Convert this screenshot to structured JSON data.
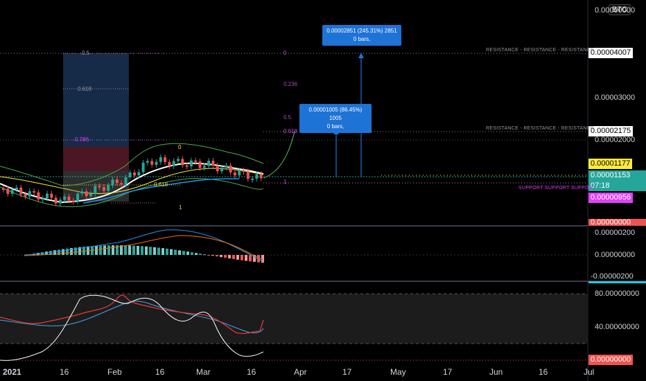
{
  "symbol": "BTC",
  "price_axis": {
    "main": [
      "0.00000000",
      "0.00003000",
      "0.00002000"
    ],
    "macd": [
      "0.00000200",
      "0.00000000",
      "-0.00000200"
    ],
    "rsi": [
      "80.00000000",
      "40.00000000"
    ]
  },
  "price_tags": {
    "resistance_top": "0.00004007",
    "resistance_mid": "0.00002175",
    "yellow": "0.00001177",
    "current": "0.00001153",
    "countdown": "07:18",
    "support": "0.00000956",
    "bottom_red": "0.00000000",
    "rsi_red": "0.00000000"
  },
  "resistance_labels": {
    "top": "RESISTANCE - RESISTANCE - RESISTANCE",
    "mid": "RESISTANCE - RESISTANCE - RESISTANCE",
    "support": "SUPPORT SUPPORT SUPPORT"
  },
  "fib_left": {
    "l05": "0.5",
    "l0618": "0.618",
    "l0786": "0.786",
    "l0618b": "0.618",
    "l1": "1"
  },
  "fib_right": {
    "l0": "0",
    "l0236": "0.236",
    "l05": "0.5",
    "l0618": "0.618",
    "l1": "1",
    "mark0": "0"
  },
  "tooltips": {
    "big_line1": "0.00002851 (245.31%) 2851",
    "big_line2": "0 bars,",
    "small_line1": "0.00001005 (86.45%) 1005",
    "small_line2": "0 bars,"
  },
  "dates": [
    "2021",
    "16",
    "Feb",
    "16",
    "Mar",
    "16",
    "Apr",
    "17",
    "May",
    "17",
    "Jun",
    "16",
    "Jul"
  ],
  "colors": {
    "accent_blue": "#1e73d6",
    "support_pink": "#e040fb",
    "yellow": "#ffeb3b",
    "teal": "#26a69a",
    "red": "#ef5350"
  }
}
